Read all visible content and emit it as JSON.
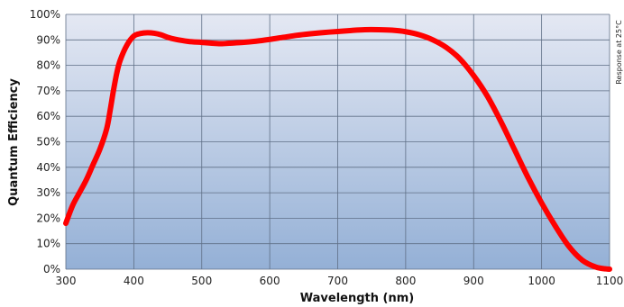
{
  "chart_data": {
    "type": "line",
    "title": "",
    "xlabel": "Wavelength (nm)",
    "ylabel": "Quantum  Efficiency",
    "annotation": "Response at 25°C",
    "xlim": [
      300,
      1100
    ],
    "ylim": [
      0,
      100
    ],
    "x_ticks": [
      "300",
      "400",
      "500",
      "600",
      "700",
      "800",
      "900",
      "1000",
      "1100"
    ],
    "y_ticks": [
      "0%",
      "10%",
      "20%",
      "30%",
      "40%",
      "50%",
      "60%",
      "70%",
      "80%",
      "90%",
      "100%"
    ],
    "grid": true,
    "background_gradient": [
      "#e4e8f3",
      "#94b0d6"
    ],
    "line_color": "#ff0000",
    "series": [
      {
        "x": [
          300,
          310,
          320,
          330,
          340,
          350,
          360,
          365,
          370,
          375,
          380,
          390,
          400,
          410,
          420,
          430,
          440,
          450,
          460,
          480,
          500,
          520,
          530,
          540,
          560,
          580,
          600,
          620,
          640,
          660,
          680,
          700,
          720,
          740,
          760,
          780,
          800,
          820,
          840,
          860,
          880,
          900,
          920,
          940,
          960,
          980,
          1000,
          1020,
          1040,
          1060,
          1080,
          1095,
          1100
        ],
        "y": [
          18,
          25,
          30,
          35,
          41,
          47,
          55,
          62,
          70,
          77,
          82,
          88,
          91.5,
          92.5,
          92.8,
          92.6,
          92,
          91,
          90.3,
          89.4,
          89,
          88.6,
          88.5,
          88.7,
          89,
          89.5,
          90.2,
          91,
          91.8,
          92.4,
          92.9,
          93.3,
          93.7,
          94,
          94,
          93.8,
          93.2,
          92,
          90,
          87,
          82.5,
          76,
          68,
          58,
          47,
          36,
          26,
          17,
          9,
          3.5,
          0.8,
          0.1,
          0
        ]
      }
    ]
  }
}
